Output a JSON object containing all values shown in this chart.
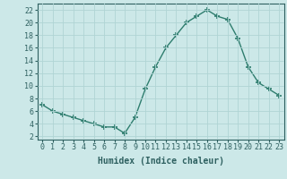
{
  "x": [
    0,
    1,
    2,
    3,
    4,
    5,
    6,
    7,
    8,
    9,
    10,
    11,
    12,
    13,
    14,
    15,
    16,
    17,
    18,
    19,
    20,
    21,
    22,
    23
  ],
  "y": [
    7,
    6,
    5.5,
    5,
    4.5,
    4,
    3.5,
    3.5,
    2.5,
    5,
    9.5,
    13,
    16,
    18,
    20,
    21,
    22,
    21,
    20.5,
    17.5,
    13,
    10.5,
    9.5,
    8.5
  ],
  "title": "",
  "xlabel": "Humidex (Indice chaleur)",
  "ylabel": "",
  "ylim": [
    1.5,
    23
  ],
  "xlim": [
    -0.5,
    23.5
  ],
  "yticks": [
    2,
    4,
    6,
    8,
    10,
    12,
    14,
    16,
    18,
    20,
    22
  ],
  "xticks": [
    0,
    1,
    2,
    3,
    4,
    5,
    6,
    7,
    8,
    9,
    10,
    11,
    12,
    13,
    14,
    15,
    16,
    17,
    18,
    19,
    20,
    21,
    22,
    23
  ],
  "line_color": "#2e7d6e",
  "marker": "+",
  "marker_size": 4,
  "marker_linewidth": 1.2,
  "bg_color": "#cce8e8",
  "grid_color": "#b0d4d4",
  "font_color": "#2e6060",
  "xlabel_fontsize": 7,
  "tick_fontsize": 6
}
